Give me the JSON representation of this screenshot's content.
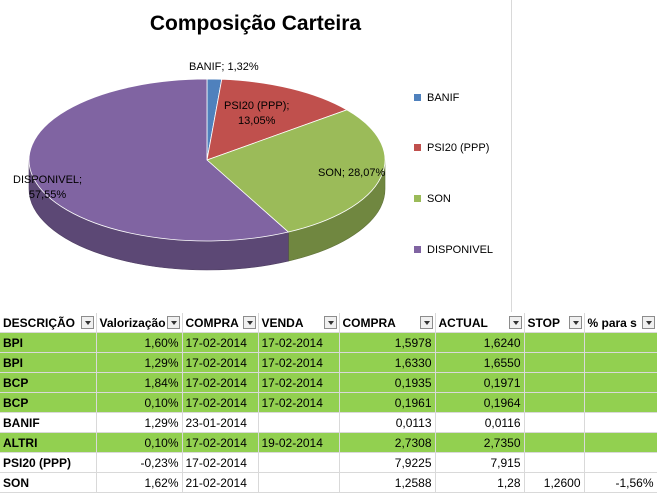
{
  "chart_data": {
    "type": "pie",
    "title": "Composição Carteira",
    "slices": [
      {
        "name": "BANIF",
        "value": 1.32,
        "label": "BANIF; 1,32%",
        "color": "#4f81bd"
      },
      {
        "name": "PSI20 (PPP)",
        "value": 13.05,
        "label": "PSI20 (PPP); 13,05%",
        "color": "#c0504d"
      },
      {
        "name": "SON",
        "value": 28.07,
        "label": "SON; 28,07%",
        "color": "#9bbb59"
      },
      {
        "name": "DISPONIVEL",
        "value": 57.55,
        "label": "DISPONIVEL; 57,55%",
        "color": "#8064a2"
      }
    ],
    "legend_placement": "right"
  },
  "labels": {
    "banif": "BANIF; 1,32%",
    "psi_1": "PSI20 (PPP);",
    "psi_2": "13,05%",
    "son": "SON; 28,07%",
    "disp_1": "DISPONIVEL;",
    "disp_2": "57,55%"
  },
  "legend": [
    "BANIF",
    "PSI20 (PPP)",
    "SON",
    "DISPONIVEL"
  ],
  "table": {
    "headers": [
      "DESCRIÇÃO",
      "Valorização",
      "COMPRA",
      "VENDA",
      "COMPRA",
      "ACTUAL",
      "STOP",
      "% para s"
    ],
    "rows": [
      {
        "cells": [
          "BPI",
          "1,60%",
          "17-02-2014",
          "17-02-2014",
          "1,5978",
          "1,6240",
          "",
          ""
        ],
        "green": true
      },
      {
        "cells": [
          "BPI",
          "1,29%",
          "17-02-2014",
          "17-02-2014",
          "1,6330",
          "1,6550",
          "",
          ""
        ],
        "green": true
      },
      {
        "cells": [
          "BCP",
          "1,84%",
          "17-02-2014",
          "17-02-2014",
          "0,1935",
          "0,1971",
          "",
          ""
        ],
        "green": true
      },
      {
        "cells": [
          "BCP",
          "0,10%",
          "17-02-2014",
          "17-02-2014",
          "0,1961",
          "0,1964",
          "",
          ""
        ],
        "green": true
      },
      {
        "cells": [
          "BANIF",
          "1,29%",
          "23-01-2014",
          "",
          "0,0113",
          "0,0116",
          "",
          ""
        ],
        "green": false
      },
      {
        "cells": [
          "ALTRI",
          "0,10%",
          "17-02-2014",
          "19-02-2014",
          "2,7308",
          "2,7350",
          "",
          ""
        ],
        "green": true
      },
      {
        "cells": [
          "PSI20 (PPP)",
          "-0,23%",
          "17-02-2014",
          "",
          "7,9225",
          "7,915",
          "",
          ""
        ],
        "green": false
      },
      {
        "cells": [
          "SON",
          "1,62%",
          "21-02-2014",
          "",
          "1,2588",
          "1,28",
          "1,2600",
          "-1,56%"
        ],
        "green": false
      }
    ]
  }
}
